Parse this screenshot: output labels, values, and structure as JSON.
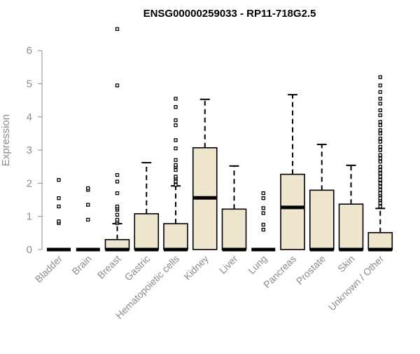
{
  "chart_data": {
    "type": "box",
    "title": "ENSG00000259033 - RP11-718G2.5",
    "ylabel": "Expression",
    "xlabel": "",
    "ylim": [
      0,
      6.8
    ],
    "yticks": [
      0,
      1,
      2,
      3,
      4,
      5,
      6
    ],
    "grid": false,
    "legend": "none",
    "colors": {
      "box_fill": "#ede6cc",
      "stroke": "#000000",
      "axis_text": "#8c8c8c"
    },
    "categories": [
      "Bladder",
      "Brain",
      "Breast",
      "Gastric",
      "Hematopoietic cells",
      "Kidney",
      "Liver",
      "Lung",
      "Pancreas",
      "Prostate",
      "Skin",
      "Unknown / Other"
    ],
    "boxes": [
      {
        "category": "Bladder",
        "q1": 0,
        "median": 0,
        "q3": 0,
        "whisker_low": 0,
        "whisker_high": 0,
        "outliers": [
          0.8,
          0.85,
          1.3,
          1.55,
          2.1
        ]
      },
      {
        "category": "Brain",
        "q1": 0,
        "median": 0,
        "q3": 0,
        "whisker_low": 0,
        "whisker_high": 0,
        "outliers": [
          0.9,
          1.35,
          1.8,
          1.85
        ]
      },
      {
        "category": "Breast",
        "q1": 0,
        "median": 0,
        "q3": 0.3,
        "whisker_low": 0,
        "whisker_high": 0.78,
        "outliers": [
          0.8,
          0.85,
          0.9,
          1.05,
          1.2,
          1.25,
          1.3,
          1.7,
          2.05,
          2.25,
          4.95,
          6.65
        ]
      },
      {
        "category": "Gastric",
        "q1": 0,
        "median": 0,
        "q3": 1.08,
        "whisker_low": 0,
        "whisker_high": 2.62,
        "outliers": []
      },
      {
        "category": "Hematopoietic cells",
        "q1": 0,
        "median": 0,
        "q3": 0.78,
        "whisker_low": 0,
        "whisker_high": 1.92,
        "outliers": [
          1.95,
          2.05,
          2.15,
          2.2,
          2.4,
          2.5,
          2.55,
          2.7,
          3.05,
          3.3,
          3.75,
          3.9,
          4.3,
          4.55
        ]
      },
      {
        "category": "Kidney",
        "q1": 0,
        "median": 1.56,
        "q3": 3.07,
        "whisker_low": 0,
        "whisker_high": 4.53,
        "outliers": []
      },
      {
        "category": "Liver",
        "q1": 0,
        "median": 0,
        "q3": 1.22,
        "whisker_low": 0,
        "whisker_high": 2.52,
        "outliers": []
      },
      {
        "category": "Lung",
        "q1": 0,
        "median": 0,
        "q3": 0,
        "whisker_low": 0,
        "whisker_high": 0,
        "outliers": [
          0.6,
          0.75,
          1.1,
          1.25,
          1.55,
          1.7
        ]
      },
      {
        "category": "Pancreas",
        "q1": 0,
        "median": 1.27,
        "q3": 2.27,
        "whisker_low": 0,
        "whisker_high": 4.67,
        "outliers": []
      },
      {
        "category": "Prostate",
        "q1": 0,
        "median": 0,
        "q3": 1.79,
        "whisker_low": 0,
        "whisker_high": 3.17,
        "outliers": []
      },
      {
        "category": "Skin",
        "q1": 0,
        "median": 0,
        "q3": 1.37,
        "whisker_low": 0,
        "whisker_high": 2.54,
        "outliers": []
      },
      {
        "category": "Unknown / Other",
        "q1": 0,
        "median": 0,
        "q3": 0.51,
        "whisker_low": 0,
        "whisker_high": 1.24,
        "outliers": [
          1.3,
          1.4,
          1.5,
          1.55,
          1.65,
          1.7,
          1.8,
          1.9,
          2.0,
          2.1,
          2.2,
          2.3,
          2.4,
          2.5,
          2.65,
          2.75,
          2.85,
          3.0,
          3.1,
          3.25,
          3.35,
          3.5,
          3.6,
          3.75,
          3.85,
          4.05,
          4.2,
          4.4,
          4.55,
          4.75,
          4.95,
          5.2
        ]
      }
    ]
  }
}
